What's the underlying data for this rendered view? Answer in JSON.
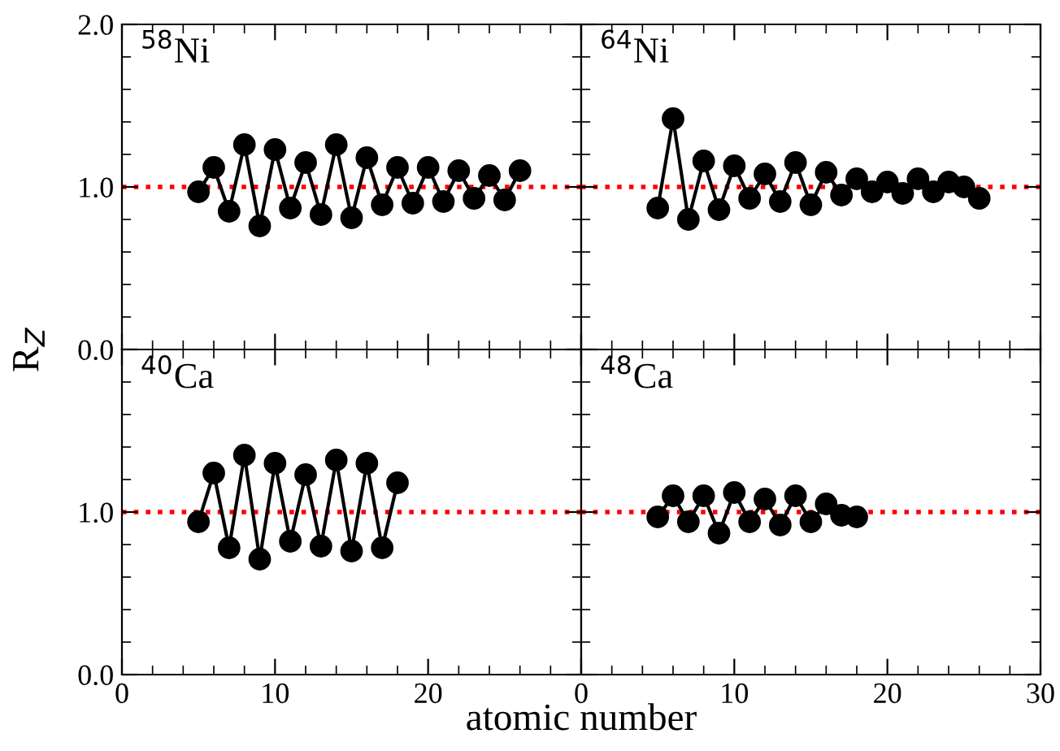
{
  "chart_data": [
    {
      "type": "line",
      "title": "$^{58}$Ni",
      "ylabel": "R$_{Z}$",
      "x": [
        5,
        6,
        7,
        8,
        9,
        10,
        11,
        12,
        13,
        14,
        15,
        16,
        17,
        18,
        19,
        20,
        21,
        22,
        23,
        24,
        25,
        26
      ],
      "series": [
        {
          "color": "#000000",
          "values": [
            0.97,
            1.12,
            0.85,
            1.26,
            0.76,
            1.23,
            0.87,
            1.15,
            0.83,
            1.26,
            0.81,
            1.18,
            0.89,
            1.12,
            0.9,
            1.12,
            0.91,
            1.1,
            0.93,
            1.07,
            0.92,
            1.1
          ]
        }
      ],
      "xlim": [
        0,
        30
      ],
      "xticks": [
        0,
        10,
        20,
        30
      ],
      "ylim": [
        0,
        2
      ],
      "yticks": [
        {
          "value": 0,
          "label": "0.0"
        },
        {
          "value": 1,
          "label": "1.0"
        },
        {
          "value": 2,
          "label": "2.0"
        }
      ],
      "tick_labels": "y",
      "marker": "circle",
      "line_style": "solid",
      "grid": false,
      "ref_lines": [
        {
          "axis": "y",
          "value": 1,
          "color": "#ff0000",
          "line_style": "dotted"
        }
      ]
    },
    {
      "type": "line",
      "title": "$^{64}$Ni",
      "x": [
        5,
        6,
        7,
        8,
        9,
        10,
        11,
        12,
        13,
        14,
        15,
        16,
        17,
        18,
        19,
        20,
        21,
        22,
        23,
        24,
        25,
        26
      ],
      "series": [
        {
          "color": "#000000",
          "values": [
            0.87,
            1.42,
            0.8,
            1.16,
            0.86,
            1.13,
            0.93,
            1.08,
            0.91,
            1.15,
            0.89,
            1.09,
            0.95,
            1.05,
            0.97,
            1.03,
            0.96,
            1.05,
            0.97,
            1.03,
            1.0,
            0.93
          ]
        }
      ],
      "xlim": [
        0,
        30
      ],
      "xticks": [
        0,
        10,
        20,
        30
      ],
      "ylim": [
        0,
        2
      ],
      "yticks": [
        0,
        1,
        2
      ],
      "tick_labels": false,
      "marker": "circle",
      "line_style": "solid",
      "grid": false,
      "ref_lines": [
        {
          "axis": "y",
          "value": 1,
          "color": "#ff0000",
          "line_style": "dotted"
        }
      ]
    },
    {
      "type": "line",
      "title": "$^{40}$Ca",
      "xlabel": "atomic number",
      "x": [
        5,
        6,
        7,
        8,
        9,
        10,
        11,
        12,
        13,
        14,
        15,
        16,
        17,
        18
      ],
      "series": [
        {
          "color": "#000000",
          "values": [
            0.94,
            1.24,
            0.78,
            1.35,
            0.71,
            1.3,
            0.82,
            1.23,
            0.79,
            1.32,
            0.76,
            1.3,
            0.78,
            1.18
          ]
        }
      ],
      "xlim": [
        0,
        30
      ],
      "xticks": [
        0,
        10,
        20,
        {
          "value": 30,
          "label": null
        }
      ],
      "ylim": [
        0,
        2
      ],
      "yticks": [
        {
          "value": 0,
          "label": "0.0"
        },
        {
          "value": 1,
          "label": "1.0"
        },
        {
          "value": 2,
          "label": null
        }
      ],
      "marker": "circle",
      "line_style": "solid",
      "grid": false,
      "ref_lines": [
        {
          "axis": "y",
          "value": 1,
          "color": "#ff0000",
          "line_style": "dotted"
        }
      ]
    },
    {
      "type": "line",
      "title": "$^{48}$Ca",
      "x": [
        5,
        6,
        7,
        8,
        9,
        10,
        11,
        12,
        13,
        14,
        15,
        16,
        17,
        18
      ],
      "series": [
        {
          "color": "#000000",
          "values": [
            0.97,
            1.1,
            0.94,
            1.1,
            0.87,
            1.12,
            0.94,
            1.08,
            0.92,
            1.1,
            0.94,
            1.05,
            0.98,
            0.97
          ]
        }
      ],
      "xlim": [
        0,
        30
      ],
      "xticks": [
        0,
        10,
        20,
        30
      ],
      "ylim": [
        0,
        2
      ],
      "yticks": [
        0,
        1,
        2
      ],
      "tick_labels": "x",
      "marker": "circle",
      "line_style": "solid",
      "grid": false,
      "ref_lines": [
        {
          "axis": "y",
          "value": 1,
          "color": "#ff0000",
          "line_style": "dotted"
        }
      ]
    }
  ]
}
